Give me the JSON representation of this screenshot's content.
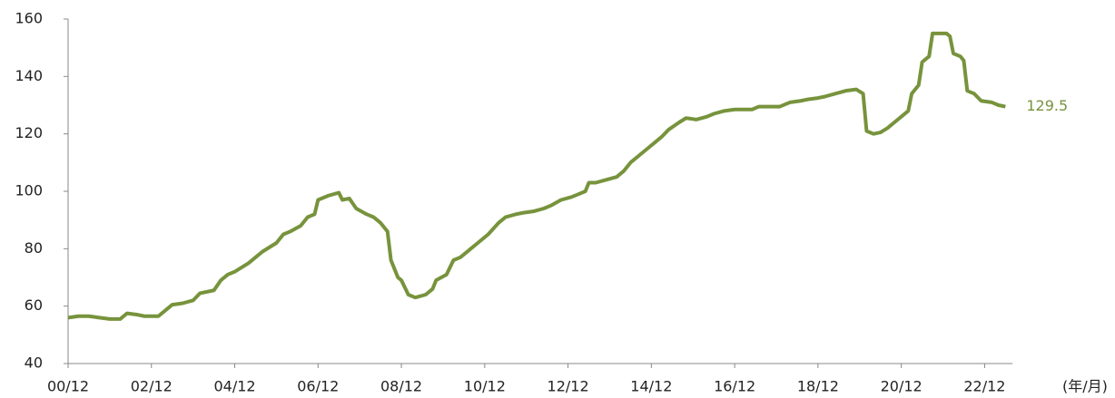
{
  "chart_data": {
    "type": "line",
    "x_label": "(年/月)",
    "xlim": [
      0,
      272
    ],
    "xticks": [
      {
        "value": 0,
        "label": "00/12"
      },
      {
        "value": 24,
        "label": "02/12"
      },
      {
        "value": 48,
        "label": "04/12"
      },
      {
        "value": 72,
        "label": "06/12"
      },
      {
        "value": 96,
        "label": "08/12"
      },
      {
        "value": 120,
        "label": "10/12"
      },
      {
        "value": 144,
        "label": "12/12"
      },
      {
        "value": 168,
        "label": "14/12"
      },
      {
        "value": 192,
        "label": "16/12"
      },
      {
        "value": 216,
        "label": "18/12"
      },
      {
        "value": 240,
        "label": "20/12"
      },
      {
        "value": 264,
        "label": "22/12"
      }
    ],
    "ylim": [
      40,
      160
    ],
    "yticks": [
      40,
      60,
      80,
      100,
      120,
      140,
      160
    ],
    "grid": false,
    "series": [
      {
        "color": "#77933c",
        "x": [
          0,
          3,
          6,
          9,
          12,
          15,
          17,
          20,
          22,
          26,
          28,
          30,
          33,
          36,
          38,
          42,
          44,
          46,
          48,
          52,
          54,
          56,
          60,
          62,
          64,
          67,
          69,
          71,
          72,
          75,
          78,
          79,
          81,
          83,
          86,
          88,
          90,
          92,
          93,
          95,
          96,
          98,
          100,
          103,
          105,
          106,
          109,
          111,
          113,
          116,
          118,
          121,
          124,
          126,
          129,
          131,
          134,
          137,
          139,
          142,
          145,
          147,
          149,
          150,
          152,
          155,
          158,
          160,
          162,
          164,
          167,
          169,
          171,
          173,
          176,
          178,
          181,
          184,
          186,
          189,
          192,
          195,
          197,
          199,
          202,
          205,
          208,
          211,
          213,
          216,
          218,
          221,
          224,
          227,
          229,
          230,
          232,
          234,
          236,
          238,
          240,
          242,
          243,
          245,
          246,
          248,
          249,
          253,
          254,
          255,
          257,
          258,
          259,
          261,
          263,
          266,
          268,
          270
        ],
        "values": [
          56,
          56.5,
          56.5,
          56,
          55.5,
          55.5,
          57.5,
          57,
          56.5,
          56.5,
          58.5,
          60.5,
          61,
          62,
          64.5,
          65.5,
          69,
          71,
          72,
          75,
          77,
          79,
          82,
          85,
          86,
          88,
          91,
          92,
          97,
          98.5,
          99.5,
          97,
          97.5,
          94,
          92,
          91,
          89,
          86,
          76,
          70,
          69,
          64,
          63,
          64,
          66,
          69,
          71,
          76,
          77,
          80,
          82,
          85,
          89,
          91,
          92,
          92.5,
          93,
          94,
          95,
          97,
          98,
          99,
          100,
          103,
          103,
          104,
          105,
          107,
          110,
          112,
          115,
          117,
          119,
          121.5,
          124,
          125.5,
          125,
          126,
          127,
          128,
          128.5,
          128.5,
          128.5,
          129.5,
          129.5,
          129.5,
          131,
          131.5,
          132,
          132.5,
          133,
          134,
          135,
          135.5,
          134,
          121,
          120,
          120.5,
          122,
          124,
          126,
          128,
          134,
          137,
          145,
          147,
          155,
          155,
          154,
          148,
          147,
          145.5,
          135,
          134,
          131.5,
          131,
          130,
          129.5
        ]
      }
    ]
  }
}
